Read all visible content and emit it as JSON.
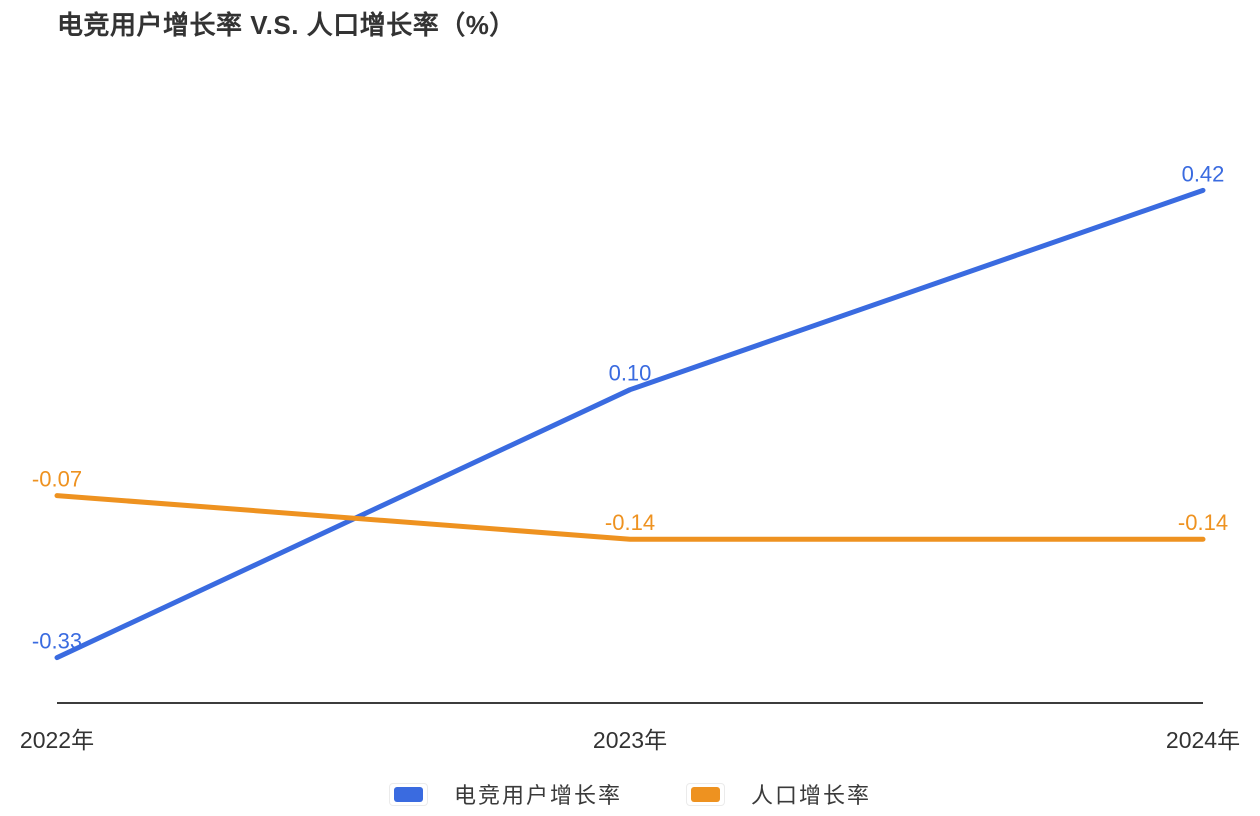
{
  "chart_data": {
    "type": "line",
    "title": "电竞用户增长率 V.S. 人口增长率（%）",
    "categories": [
      "2022年",
      "2023年",
      "2024年"
    ],
    "series": [
      {
        "name": "电竞用户增长率",
        "color": "#3A6BE0",
        "values": [
          -0.33,
          0.1,
          0.42
        ]
      },
      {
        "name": "人口增长率",
        "color": "#EE9220",
        "values": [
          -0.07,
          -0.14,
          -0.14
        ]
      }
    ],
    "data_labels": true,
    "value_decimals": 2,
    "legend_position": "bottom",
    "grid": false,
    "xlabel": "",
    "ylabel": "",
    "ylim": [
      -0.4,
      0.5
    ]
  },
  "colors": {
    "title_text": "#333333",
    "axis_line": "#3c3c3c",
    "tick_text": "#333333",
    "legend_text": "#3a3a3a",
    "legend_swatch_border": "#ebebeb"
  }
}
